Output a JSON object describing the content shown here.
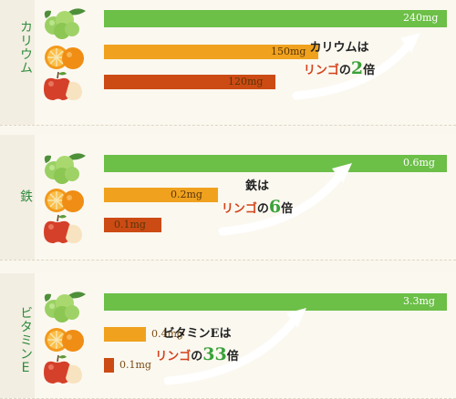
{
  "chart_data": [
    {
      "type": "bar",
      "title": "カリウム",
      "categories": [
        "green-fruit",
        "orange",
        "apple"
      ],
      "values": [
        240,
        150,
        120
      ],
      "unit": "mg",
      "value_labels": [
        "240mg",
        "150mg",
        "120mg"
      ],
      "callout": {
        "subject": "カリウム",
        "particle": "は",
        "ringo": "リンゴ",
        "no": "の",
        "number": "2",
        "bai": "倍"
      },
      "colors": [
        "#6cbf47",
        "#f0a21e",
        "#cc4b14"
      ]
    },
    {
      "type": "bar",
      "title": "鉄",
      "categories": [
        "green-fruit",
        "orange",
        "apple"
      ],
      "values": [
        0.6,
        0.2,
        0.1
      ],
      "unit": "mg",
      "value_labels": [
        "0.6mg",
        "0.2mg",
        "0.1mg"
      ],
      "callout": {
        "subject": "鉄",
        "particle": "は",
        "ringo": "リンゴ",
        "no": "の",
        "number": "6",
        "bai": "倍"
      },
      "colors": [
        "#6cbf47",
        "#f0a21e",
        "#cc4b14"
      ]
    },
    {
      "type": "bar",
      "title": "ビタミンE",
      "categories": [
        "green-fruit",
        "orange",
        "apple"
      ],
      "values": [
        3.3,
        0.4,
        0.1
      ],
      "unit": "mg",
      "value_labels": [
        "3.3mg",
        "0.4mg",
        "0.1mg"
      ],
      "callout": {
        "subject": "ビタミンE",
        "particle": "は",
        "ringo": "リンゴ",
        "no": "の",
        "number": "33",
        "bai": "倍"
      },
      "colors": [
        "#6cbf47",
        "#f0a21e",
        "#cc4b14"
      ]
    }
  ],
  "icons": [
    "green-fruit-icon",
    "orange-slice-icon",
    "apple-icon"
  ]
}
